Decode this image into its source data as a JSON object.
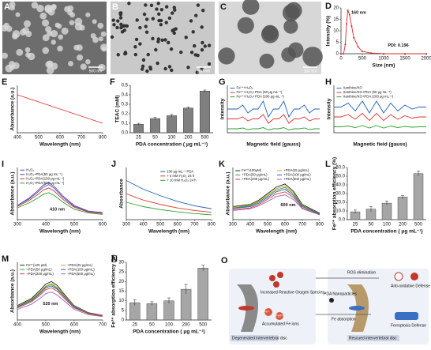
{
  "images": [
    {
      "panel": "A",
      "scale_bar": "500 nm"
    },
    {
      "panel": "B",
      "scale_bar": "500 nm"
    },
    {
      "panel": "C",
      "scale_bar": "100 nm"
    }
  ],
  "chart_data": [
    {
      "type": "line",
      "panel": "D",
      "xlabel": "Size (nm)",
      "ylabel": "Intensity (%)",
      "x": [
        0,
        60,
        100,
        130,
        160,
        200,
        250,
        300,
        400,
        500,
        700,
        1000,
        1500,
        2000
      ],
      "series": [
        {
          "color": "#d62728",
          "values": [
            0,
            0,
            4,
            13,
            19,
            17,
            12,
            7,
            3,
            1,
            0.3,
            0,
            0,
            0
          ]
        }
      ],
      "xlim": [
        0,
        2000
      ],
      "xticks": [
        0,
        500,
        1000,
        1500,
        2000
      ],
      "ylim": [
        0,
        20
      ],
      "yticks": [
        0,
        5,
        10,
        15,
        20
      ],
      "markers": true,
      "annotations": [
        "160 nm",
        "PDI: 0.196"
      ]
    },
    {
      "type": "line",
      "panel": "E",
      "xlabel": "Wavelength (nm)",
      "ylabel": "Absorbance (a.u.)",
      "x": [
        400,
        500,
        600,
        700,
        800
      ],
      "series": [
        {
          "color": "#e3342f",
          "values": [
            0.8,
            0.65,
            0.5,
            0.35,
            0.2
          ]
        }
      ],
      "xlim": [
        400,
        800
      ],
      "xticks": [
        400,
        500,
        600,
        700,
        800
      ],
      "ylim": [
        0,
        1
      ]
    },
    {
      "type": "bar",
      "panel": "F",
      "xlabel": "PDA concentration ( μg mL⁻¹)",
      "ylabel": "TEAC (mM)",
      "categories": [
        "25",
        "50",
        "100",
        "200",
        "500"
      ],
      "values": [
        0.09,
        0.15,
        0.18,
        0.26,
        0.44
      ],
      "errors": [
        0.01,
        0.01,
        0.015,
        0.01,
        0.01
      ],
      "color": "#7f7f7f",
      "ylim": [
        0,
        0.5
      ],
      "yticks": [
        {
          "value": 0,
          "label": "0.0"
        },
        0.1,
        0.2,
        0.3,
        0.4,
        0.5
      ]
    },
    {
      "type": "line",
      "panel": "G",
      "xlabel": "Magnetic field (gauss)",
      "ylabel": "Intensity",
      "series": [
        {
          "name": "Fe²⁺+H₂O₂",
          "color": "#1f5fbf",
          "values": [
            6,
            6,
            6,
            7,
            5,
            6,
            6,
            8,
            4,
            6,
            6,
            8,
            4,
            6,
            6,
            7,
            5,
            6,
            6
          ]
        },
        {
          "name": "Fe²⁺+H₂O₂+PDA (50 μg mL⁻¹)",
          "color": "#e3342f",
          "values": [
            3.5,
            3.5,
            3.5,
            4,
            3,
            3.5,
            3.5,
            4.6,
            2.4,
            3.5,
            3.5,
            4.6,
            2.4,
            3.5,
            3.5,
            4,
            3,
            3.5,
            3.5
          ]
        },
        {
          "name": "Fe²⁺+H₂O₂+PDA (200 μg mL⁻¹)",
          "color": "#2ca02c",
          "values": [
            1,
            1,
            1,
            1.2,
            0.8,
            1,
            1,
            1.3,
            0.7,
            1,
            1,
            1.3,
            0.7,
            1,
            1,
            1.2,
            0.8,
            1,
            1
          ]
        }
      ],
      "ylim": [
        0,
        12
      ]
    },
    {
      "type": "line",
      "panel": "H",
      "xlabel": "Magnetic field (gauss)",
      "ylabel": "Intensity",
      "series": [
        {
          "name": "Xanthine/XO",
          "color": "#1f5fbf",
          "values": [
            6.5,
            6.5,
            7.5,
            5.5,
            8,
            5,
            8,
            5,
            7.5,
            5.5,
            7,
            6,
            6.5,
            6.5
          ]
        },
        {
          "name": "Xanthine/XO+PDA (50 μg mL⁻¹)",
          "color": "#e3342f",
          "values": [
            4,
            4,
            4.6,
            3.4,
            4.9,
            3.1,
            4.9,
            3.1,
            4.6,
            3.4,
            4.3,
            3.7,
            4,
            4
          ]
        },
        {
          "name": "Xanthine/XO+PDA (200 μg mL⁻¹)",
          "color": "#2ca02c",
          "values": [
            1.5,
            1.5,
            1.7,
            1.3,
            1.8,
            1.2,
            1.8,
            1.2,
            1.7,
            1.3,
            1.6,
            1.4,
            1.5,
            1.5
          ]
        }
      ],
      "ylim": [
        0,
        12
      ]
    },
    {
      "type": "line",
      "panel": "I",
      "xlabel": "Wavelength (nm)",
      "ylabel": "Absorbance (a.u.)",
      "x": [
        300,
        340,
        370,
        390,
        410,
        430,
        460,
        500,
        550,
        600
      ],
      "series": [
        {
          "name": "H₂O₂",
          "color": "#7b3fa0",
          "values": [
            0.3,
            0.45,
            0.6,
            0.72,
            0.78,
            0.7,
            0.5,
            0.3,
            0.18,
            0.15
          ]
        },
        {
          "name": "H₂O₂+PDA(50 μg mL⁻¹)",
          "color": "#1f5fbf",
          "values": [
            0.3,
            0.43,
            0.57,
            0.68,
            0.74,
            0.66,
            0.47,
            0.28,
            0.17,
            0.14
          ]
        },
        {
          "name": "H₂O₂+PDA(100 μg mL⁻¹)",
          "color": "#e3342f",
          "values": [
            0.28,
            0.4,
            0.52,
            0.62,
            0.67,
            0.6,
            0.43,
            0.26,
            0.16,
            0.13
          ]
        },
        {
          "name": "H₂O₂+PDA(500 μg mL⁻¹)",
          "color": "#2ca02c",
          "values": [
            0.25,
            0.35,
            0.45,
            0.53,
            0.57,
            0.51,
            0.37,
            0.22,
            0.14,
            0.11
          ]
        }
      ],
      "xlim": [
        300,
        600
      ],
      "xticks": [
        300,
        400,
        500,
        600
      ],
      "ylim": [
        0,
        1.1
      ],
      "annotations": [
        "410 nm"
      ]
    },
    {
      "type": "line",
      "panel": "J",
      "xlabel": "Wavelength (nm)",
      "ylabel": "Absorbance",
      "x": [
        300,
        350,
        400,
        500,
        600,
        700,
        800
      ],
      "series": [
        {
          "name": "100 μg mL⁻¹ PDA",
          "color": "#1f5fbf",
          "values": [
            0.9,
            0.8,
            0.7,
            0.55,
            0.42,
            0.32,
            0.25
          ]
        },
        {
          "name": "+ 5 mM H₂O₂ 24 h",
          "color": "#e3342f",
          "values": [
            0.6,
            0.52,
            0.45,
            0.35,
            0.27,
            0.21,
            0.17
          ]
        },
        {
          "name": "+ 10 mM H₂O₂ 24 h",
          "color": "#2ca02c",
          "values": [
            0.4,
            0.35,
            0.3,
            0.23,
            0.18,
            0.14,
            0.11
          ]
        }
      ],
      "xlim": [
        300,
        800
      ],
      "xticks": [
        300,
        400,
        500,
        600,
        700,
        800
      ],
      "ylim": [
        0,
        1.2
      ]
    },
    {
      "type": "line",
      "panel": "K",
      "xlabel": "Wavelength (nm)",
      "ylabel": "Absorbance (a.u.)",
      "x": [
        300,
        400,
        450,
        500,
        550,
        600,
        650,
        700,
        800
      ],
      "series": [
        {
          "name": "Fe²⁺(100μM)",
          "color": "#222222",
          "values": [
            0.3,
            0.35,
            0.45,
            0.6,
            0.75,
            0.82,
            0.65,
            0.35,
            0.15
          ]
        },
        {
          "name": "+PDA(25 μg/mL)",
          "color": "#e39b2f",
          "values": [
            0.29,
            0.33,
            0.43,
            0.57,
            0.71,
            0.78,
            0.62,
            0.33,
            0.14
          ]
        },
        {
          "name": "+PDA(50 μg/mL)",
          "color": "#2ca02c",
          "values": [
            0.27,
            0.32,
            0.41,
            0.54,
            0.68,
            0.74,
            0.59,
            0.32,
            0.14
          ]
        },
        {
          "name": "+PDA(100 μg/mL)",
          "color": "#1f5fbf",
          "values": [
            0.26,
            0.3,
            0.38,
            0.51,
            0.64,
            0.7,
            0.55,
            0.3,
            0.13
          ]
        },
        {
          "name": "+PDA(200 μg/mL)",
          "color": "#e3342f",
          "values": [
            0.23,
            0.27,
            0.35,
            0.47,
            0.59,
            0.64,
            0.51,
            0.27,
            0.12
          ]
        },
        {
          "name": "+PDA(500 μg/mL)",
          "color": "#9467bd",
          "values": [
            0.21,
            0.25,
            0.32,
            0.42,
            0.53,
            0.57,
            0.46,
            0.25,
            0.11
          ]
        }
      ],
      "xlim": [
        300,
        800
      ],
      "xticks": [
        300,
        400,
        500,
        600,
        700,
        800
      ],
      "ylim": [
        0,
        1.2
      ],
      "annotations": [
        "600 nm"
      ]
    },
    {
      "type": "bar",
      "panel": "L",
      "xlabel": "PDA concentration ( μg mL⁻¹)",
      "ylabel": "Fe²⁺ absorption efficiency (%)",
      "categories": [
        "25",
        "50",
        "100",
        "200",
        "500"
      ],
      "values": [
        9,
        12,
        19,
        26,
        53
      ],
      "errors": [
        2,
        3,
        2.5,
        2,
        3
      ],
      "color": "#a6a6a6",
      "ylim": [
        0,
        60
      ],
      "yticks": [
        {
          "value": 0,
          "label": "0.0"
        },
        {
          "value": 10,
          "label": "10.0"
        },
        {
          "value": 20,
          "label": "20.0"
        },
        {
          "value": 30,
          "label": "30.0"
        },
        {
          "value": 40,
          "label": "40.0"
        },
        {
          "value": 50,
          "label": "50.0"
        },
        {
          "value": 60,
          "label": "60.0"
        }
      ]
    },
    {
      "type": "line",
      "panel": "M",
      "xlabel": "Wavelength (nm)",
      "ylabel": "Absorbance (a.u.)",
      "x": [
        400,
        450,
        480,
        500,
        520,
        540,
        570,
        600,
        650,
        700
      ],
      "series": [
        {
          "name": "Fe³⁺(125 μM)",
          "color": "#222222",
          "values": [
            0.3,
            0.45,
            0.62,
            0.75,
            0.8,
            0.72,
            0.5,
            0.3,
            0.15,
            0.1
          ]
        },
        {
          "name": "+PDA(25 μg/mL)",
          "color": "#e39b2f",
          "values": [
            0.29,
            0.43,
            0.59,
            0.71,
            0.76,
            0.68,
            0.48,
            0.29,
            0.14,
            0.1
          ]
        },
        {
          "name": "+PDA(50 μg/mL)",
          "color": "#2ca02c",
          "values": [
            0.28,
            0.42,
            0.57,
            0.69,
            0.74,
            0.66,
            0.46,
            0.28,
            0.14,
            0.09
          ]
        },
        {
          "name": "+PDA(100 μg/mL)",
          "color": "#1f5fbf",
          "values": [
            0.27,
            0.4,
            0.55,
            0.67,
            0.71,
            0.64,
            0.45,
            0.27,
            0.13,
            0.09
          ]
        },
        {
          "name": "+PDA(200 μg/mL)",
          "color": "#e3342f",
          "values": [
            0.25,
            0.38,
            0.52,
            0.63,
            0.67,
            0.6,
            0.42,
            0.25,
            0.13,
            0.08
          ]
        },
        {
          "name": "+PDA(500 μg/mL)",
          "color": "#9467bd",
          "values": [
            0.22,
            0.33,
            0.45,
            0.55,
            0.58,
            0.52,
            0.37,
            0.22,
            0.11,
            0.07
          ]
        }
      ],
      "xlim": [
        400,
        700
      ],
      "xticks": [
        400,
        500,
        600,
        700
      ],
      "ylim": [
        0,
        1.2
      ],
      "annotations": [
        "520 nm"
      ]
    },
    {
      "type": "bar",
      "panel": "N",
      "xlabel": "PDA concentration ( μg mL⁻¹)",
      "ylabel": "Fe³⁺ absorption efficiency (%)",
      "categories": [
        "25",
        "50",
        "100",
        "200",
        "500"
      ],
      "values": [
        9,
        8.5,
        10,
        16,
        27
      ],
      "errors": [
        1.5,
        1,
        1.5,
        2.5,
        1.5
      ],
      "color": "#a6a6a6",
      "ylim": [
        0,
        30
      ],
      "yticks": [
        0,
        5,
        10,
        15,
        20,
        25,
        30
      ]
    }
  ],
  "diagram": {
    "panel": "O",
    "labels": [
      "ROS elimination",
      "Increased Reactive Oxygen Species",
      "Accumulated Fe ions",
      "Degenerated intervertebral disc",
      "PDA Nanoparticles",
      "Fe absorption",
      "Rescued intervertebral disc",
      "Anti-oxidative Defense",
      "Ferroptosis Defense",
      "Fe²⁺",
      "Fe³⁺"
    ]
  }
}
